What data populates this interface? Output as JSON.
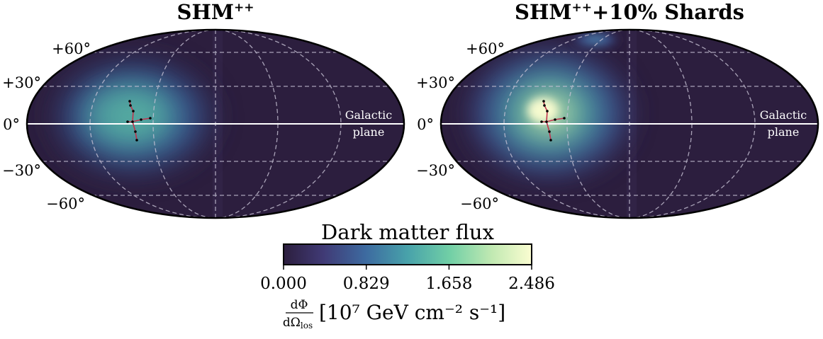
{
  "chart_data": [
    {
      "type": "heatmap",
      "projection": "mollweide",
      "title_main": "SHM",
      "title_sup": "++",
      "title_rest": "",
      "lat_labels": [
        "+60°",
        "+30°",
        "0°",
        "−30°",
        "−60°"
      ],
      "annotation_line1": "Galactic",
      "annotation_line2": "plane",
      "peak_value": 1.4,
      "hotspot_lon_deg": 105,
      "hotspot_lat_deg": 6,
      "constellation": "stream-figure"
    },
    {
      "type": "heatmap",
      "projection": "mollweide",
      "title_main": "SHM",
      "title_sup": "++",
      "title_rest": "+10% Shards",
      "lat_labels": [
        "+60°",
        "+30°",
        "0°",
        "−30°",
        "−60°"
      ],
      "annotation_line1": "Galactic",
      "annotation_line2": "plane",
      "peak_value": 2.486,
      "hotspot_lon_deg": 110,
      "hotspot_lat_deg": 8,
      "secondary_hotspot_lon_deg": 45,
      "secondary_hotspot_lat_deg": 70
    }
  ],
  "colorbar": {
    "title": "Dark matter flux",
    "vmin": 0.0,
    "vmax": 2.486,
    "ticks": [
      "0.000",
      "0.829",
      "1.658",
      "2.486"
    ],
    "label_num": "dΦ",
    "label_den": "dΩ",
    "label_den_sub": "los",
    "label_units": "[10⁷ GeV cm⁻² s⁻¹]",
    "colormap": [
      "#2c1e3e",
      "#403a75",
      "#3d6aa0",
      "#48a2aa",
      "#71cfa6",
      "#c1e9b2",
      "#fbfdd1"
    ]
  }
}
